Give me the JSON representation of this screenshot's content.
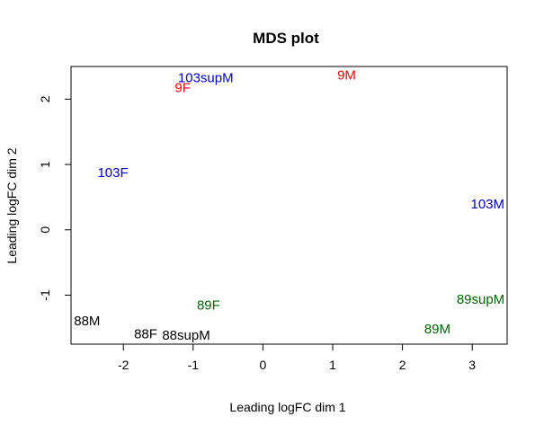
{
  "chart_data": {
    "type": "scatter",
    "title": "MDS plot",
    "xlabel": "Leading logFC dim 1",
    "ylabel": "Leading logFC dim 2",
    "xlim": [
      -2.75,
      3.5
    ],
    "ylim": [
      -1.75,
      2.5
    ],
    "xticks": [
      -2,
      -1,
      0,
      1,
      2,
      3
    ],
    "yticks": [
      -1,
      0,
      1,
      2
    ],
    "xtick_labels": [
      "-2",
      "-1",
      "0",
      "1",
      "2",
      "3"
    ],
    "ytick_labels": [
      "-1",
      "0",
      "1",
      "2"
    ],
    "grid": false,
    "colors": {
      "red": "#ff0000",
      "blue": "#0000cc",
      "green": "#006400",
      "black": "#000000"
    },
    "points": [
      {
        "label": "9M",
        "x": 1.2,
        "y": 2.36,
        "color": "#ff0000"
      },
      {
        "label": "9F",
        "x": -1.15,
        "y": 2.17,
        "color": "#ff0000"
      },
      {
        "label": "103supM",
        "x": -0.82,
        "y": 2.32,
        "color": "#0000cc"
      },
      {
        "label": "103F",
        "x": -2.15,
        "y": 0.87,
        "color": "#0000cc"
      },
      {
        "label": "103M",
        "x": 3.22,
        "y": 0.39,
        "color": "#0000cc"
      },
      {
        "label": "89supM",
        "x": 3.12,
        "y": -1.07,
        "color": "#006400"
      },
      {
        "label": "89F",
        "x": -0.78,
        "y": -1.16,
        "color": "#006400"
      },
      {
        "label": "89M",
        "x": 2.5,
        "y": -1.52,
        "color": "#006400"
      },
      {
        "label": "88M",
        "x": -2.52,
        "y": -1.4,
        "color": "#000000"
      },
      {
        "label": "88F",
        "x": -1.68,
        "y": -1.6,
        "color": "#000000"
      },
      {
        "label": "88supM",
        "x": -1.1,
        "y": -1.62,
        "color": "#000000"
      }
    ]
  }
}
